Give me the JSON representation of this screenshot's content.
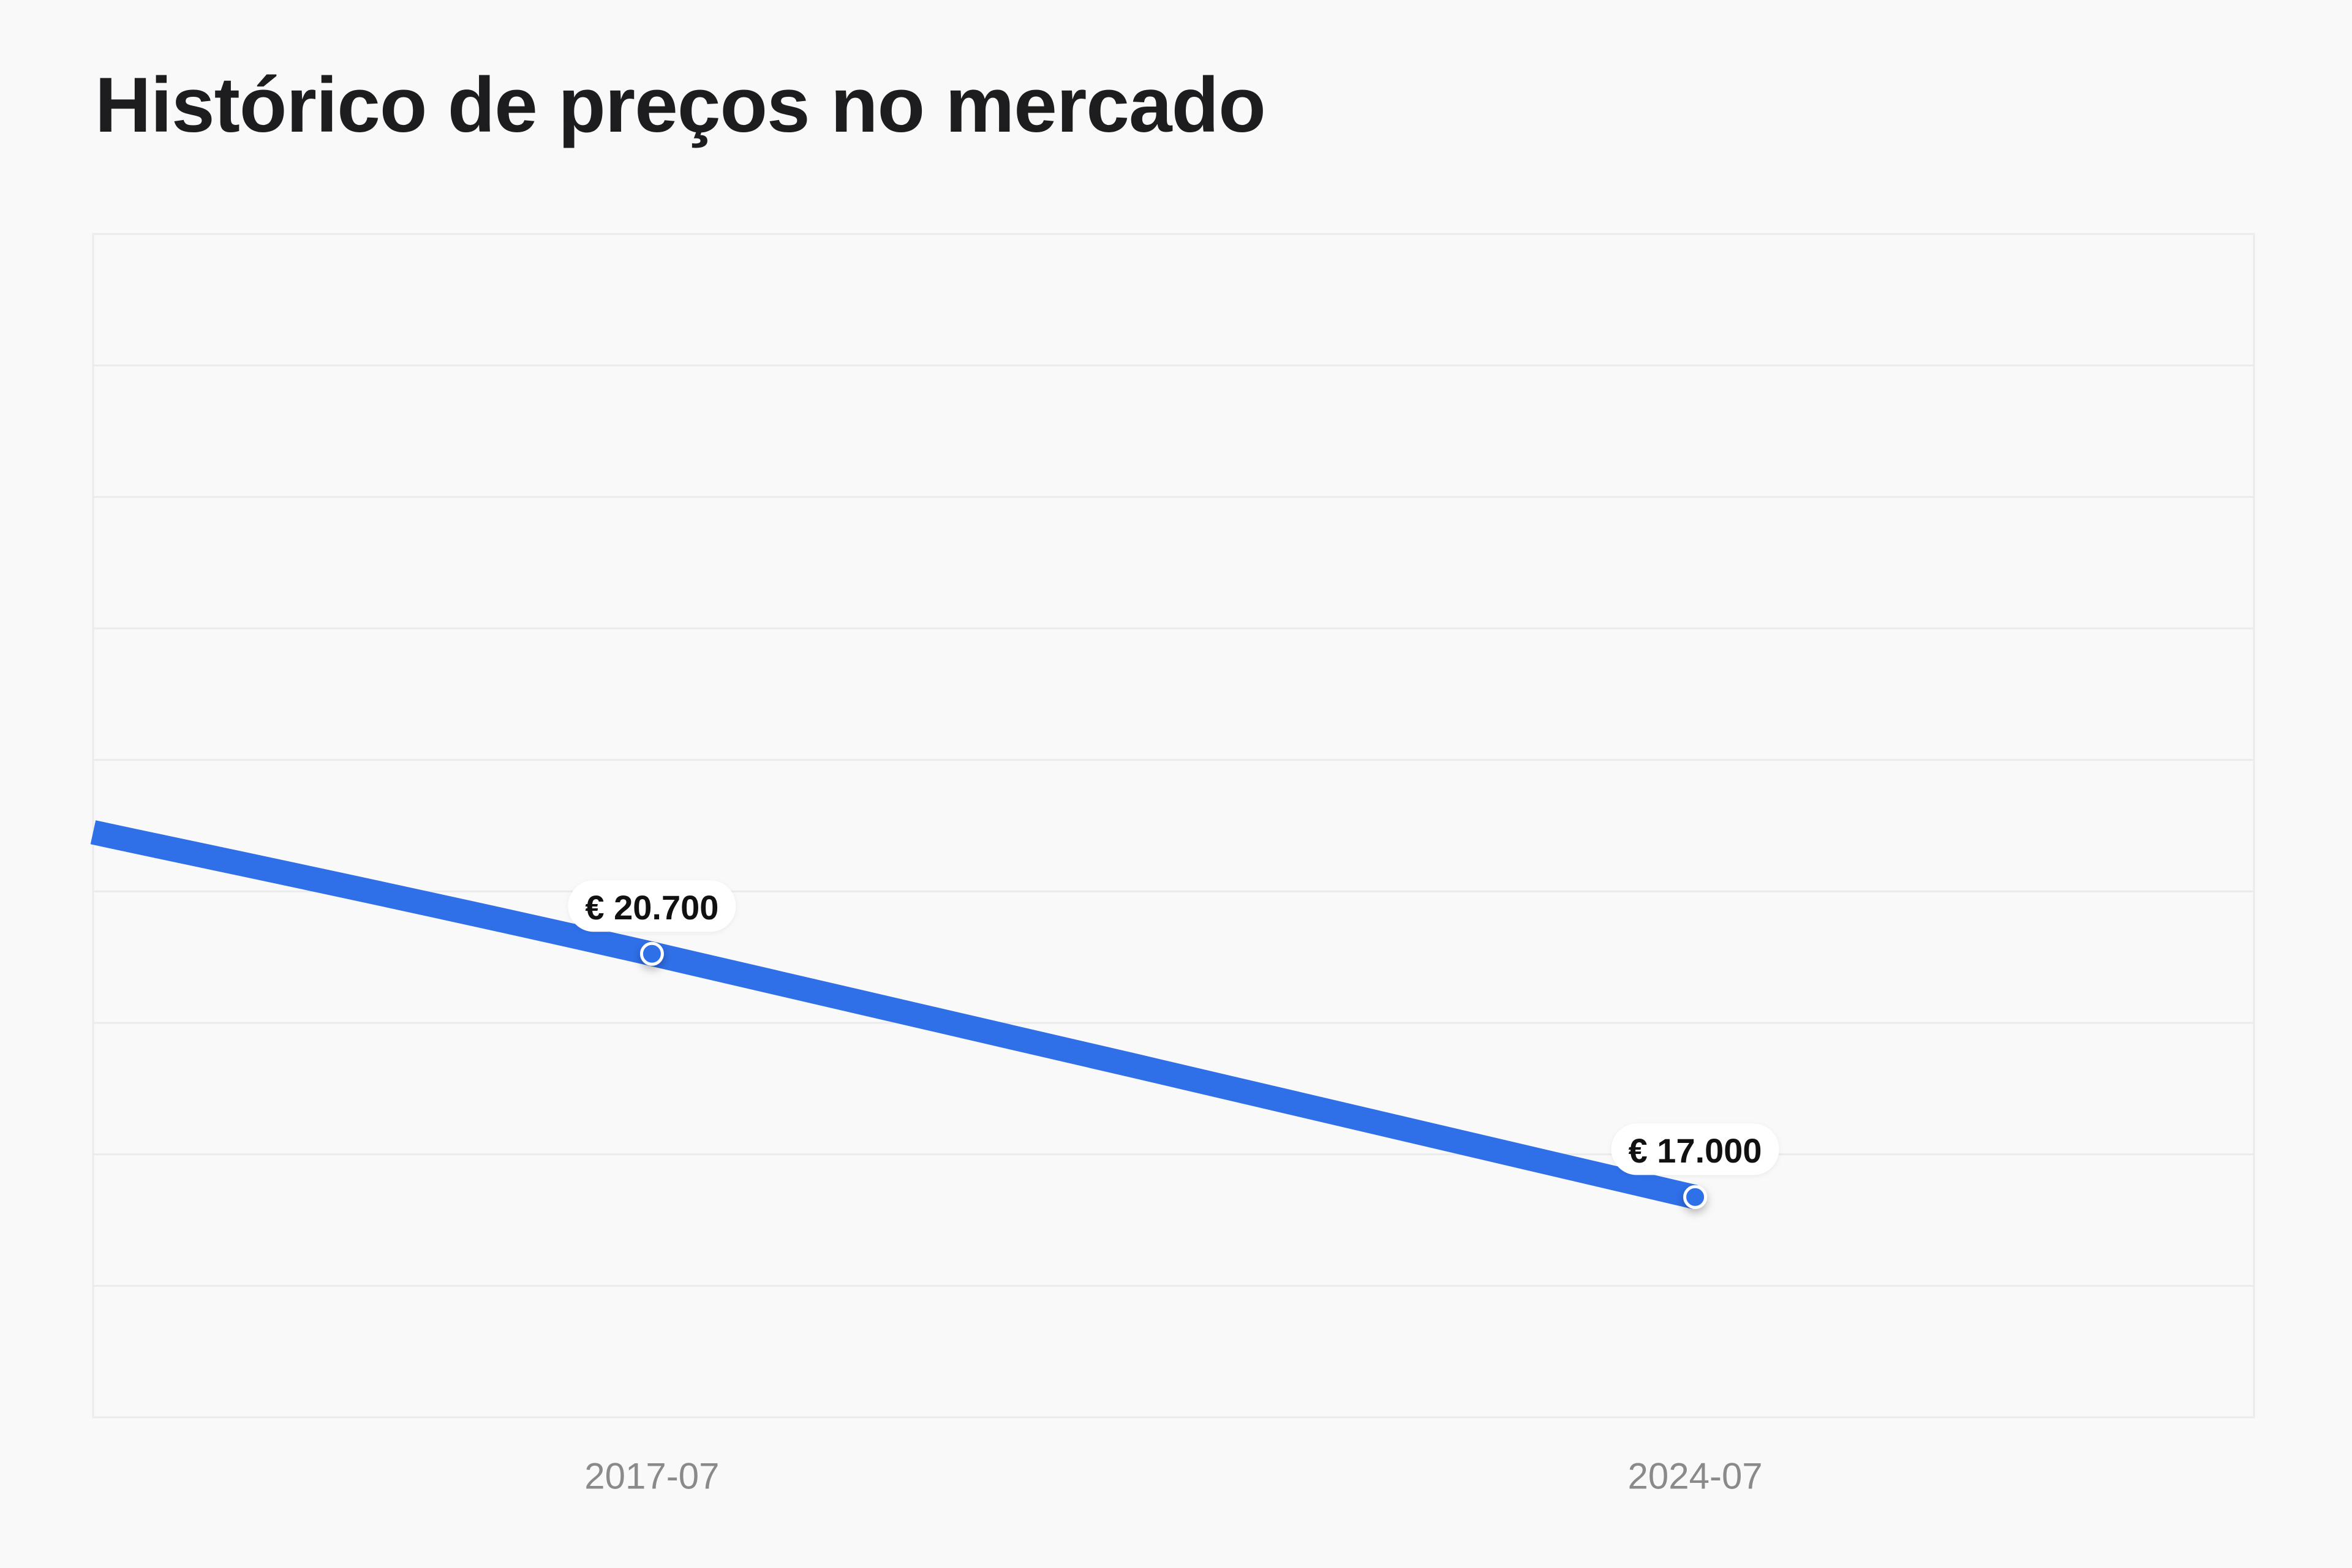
{
  "header": {
    "title": "Histórico de preços no mercado"
  },
  "colors": {
    "line": "#2f6fe8",
    "background": "#f9f9f9",
    "grid": "#ebebeb",
    "tick_text": "#8a8a8a",
    "label_text": "#111111"
  },
  "chart_data": {
    "type": "line",
    "title": "Histórico de preços no mercado",
    "xlabel": "",
    "ylabel": "",
    "x_ticks": [
      "2017-07",
      "2024-07"
    ],
    "series": [
      {
        "values": [
          {
            "x": "2013-10",
            "y": 22550,
            "label": ""
          },
          {
            "x": "2017-07",
            "y": 20700,
            "label": "€ 20.700"
          },
          {
            "x": "2024-07",
            "y": 17000,
            "label": "€ 17.000"
          }
        ]
      }
    ],
    "xlim": [
      "2013-10",
      "2028-04"
    ],
    "ylim": [
      13650,
      31650
    ],
    "grid": true,
    "legend": "none"
  }
}
